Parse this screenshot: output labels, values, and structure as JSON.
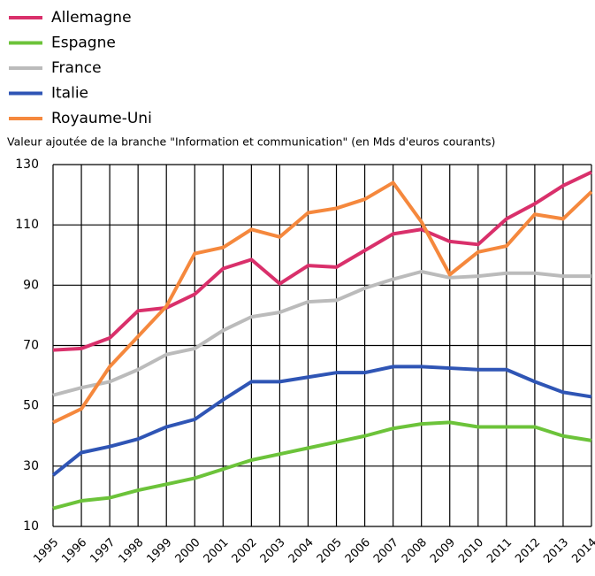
{
  "chart_data": {
    "type": "line",
    "subtitle": "Valeur ajoutée de la branche \"Information et communication\" (en Mds d'euros courants)",
    "categories": [
      "1995",
      "1996",
      "1997",
      "1998",
      "1999",
      "2000",
      "2001",
      "2002",
      "2003",
      "2004",
      "2005",
      "2006",
      "2007",
      "2008",
      "2009",
      "2010",
      "2011",
      "2012",
      "2013",
      "2014"
    ],
    "series": [
      {
        "name": "Allemagne",
        "color": "#d9306b",
        "values": [
          68.5,
          69,
          72.5,
          81.5,
          82.5,
          87,
          95.5,
          98.5,
          90.5,
          96.5,
          96,
          101.5,
          107,
          108.5,
          104.5,
          103.5,
          112,
          117,
          123,
          127.5
        ]
      },
      {
        "name": "Espagne",
        "color": "#6cc33a",
        "values": [
          16,
          18.5,
          19.5,
          22,
          24,
          26,
          29,
          32,
          34,
          36,
          38,
          40,
          42.5,
          44,
          44.5,
          43,
          43,
          43,
          40,
          38.5
        ]
      },
      {
        "name": "France",
        "color": "#bbbbbb",
        "values": [
          53.5,
          56,
          58,
          62,
          67,
          69,
          75,
          79.5,
          81,
          84.5,
          85,
          89,
          92,
          94.5,
          92.5,
          93,
          94,
          94,
          93,
          93
        ]
      },
      {
        "name": "Italie",
        "color": "#2f55b5",
        "values": [
          27,
          34.5,
          36.5,
          39,
          43,
          45.5,
          52,
          58,
          58,
          59.5,
          61,
          61,
          63,
          63,
          62.5,
          62,
          62,
          58,
          54.5,
          53
        ]
      },
      {
        "name": "Royaume-Uni",
        "color": "#f5883d",
        "values": [
          44.5,
          49,
          63,
          73,
          83,
          100.5,
          102.5,
          108.5,
          106,
          114,
          115.5,
          118.5,
          124,
          111,
          93.5,
          101,
          103,
          113.5,
          112,
          121
        ]
      }
    ],
    "ylim": [
      10,
      130
    ],
    "yticks": [
      10,
      30,
      50,
      70,
      90,
      110,
      130
    ],
    "grid": true,
    "legend": "top-left"
  }
}
